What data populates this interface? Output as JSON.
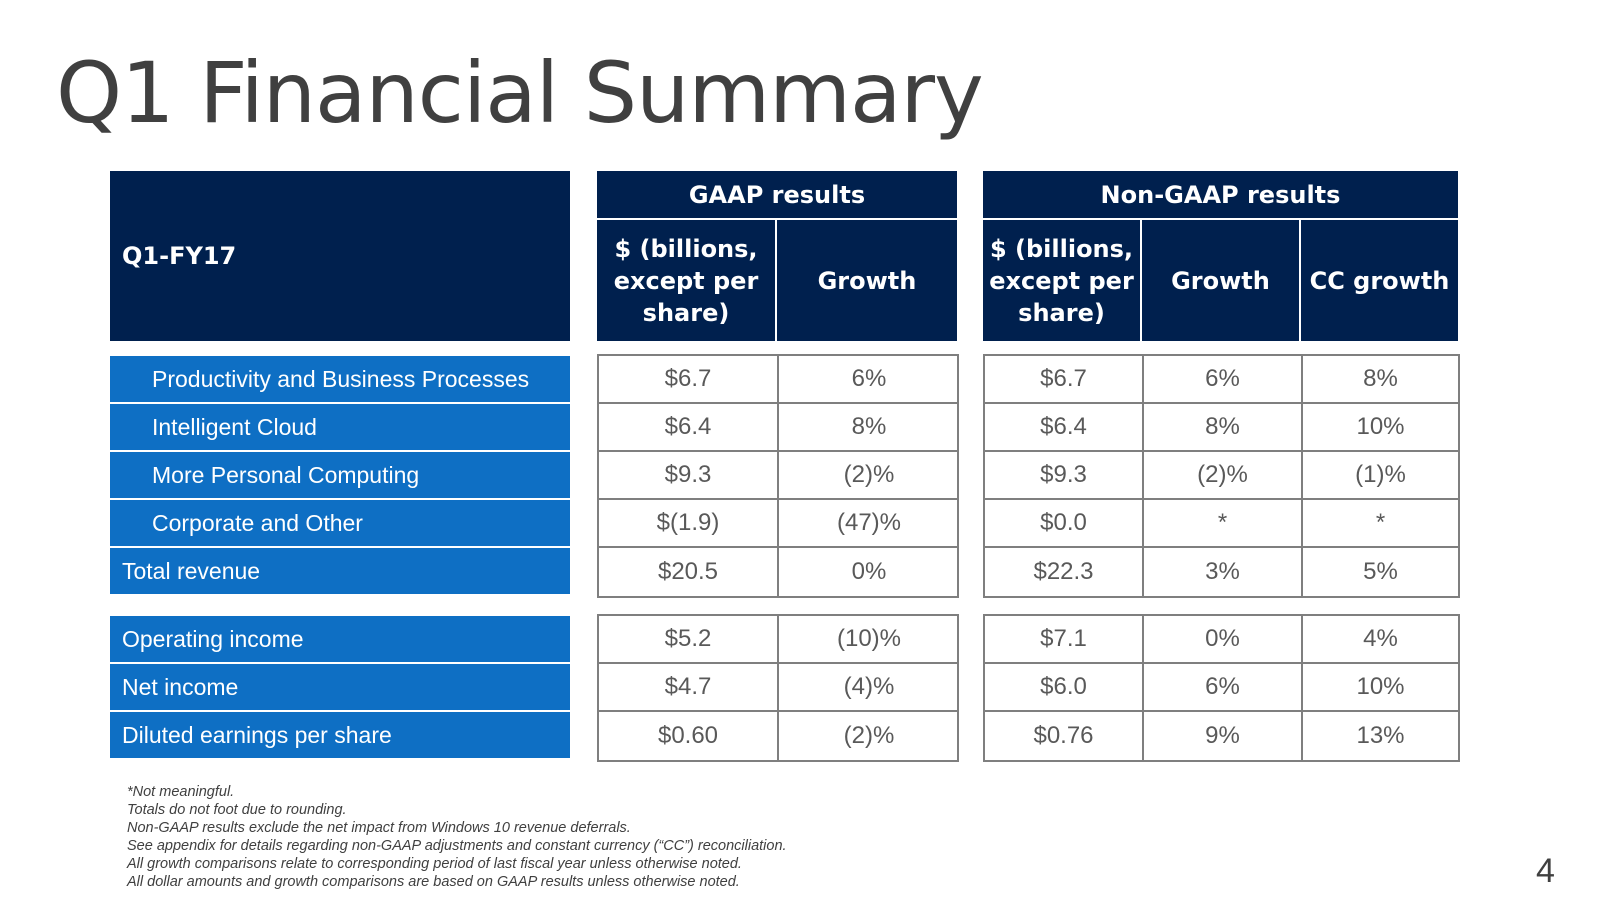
{
  "title": "Q1 Financial Summary",
  "header": {
    "period": "Q1-FY17",
    "gaap_group": "GAAP results",
    "nongaap_group": "Non-GAAP results",
    "col_dollars": "$ (billions, except per share)",
    "col_growth": "Growth",
    "col_cc_growth": "CC growth"
  },
  "revenue_rows": [
    {
      "label": "Productivity and Business Processes",
      "gaap_value": "$6.7",
      "gaap_growth": "6%",
      "ng_value": "$6.7",
      "ng_growth": "6%",
      "ng_cc": "8%"
    },
    {
      "label": "Intelligent Cloud",
      "gaap_value": "$6.4",
      "gaap_growth": "8%",
      "ng_value": "$6.4",
      "ng_growth": "8%",
      "ng_cc": "10%"
    },
    {
      "label": "More Personal Computing",
      "gaap_value": "$9.3",
      "gaap_growth": "(2)%",
      "ng_value": "$9.3",
      "ng_growth": "(2)%",
      "ng_cc": "(1)%"
    },
    {
      "label": "Corporate and Other",
      "gaap_value": "$(1.9)",
      "gaap_growth": "(47)%",
      "ng_value": "$0.0",
      "ng_growth": "*",
      "ng_cc": "*"
    },
    {
      "label": "Total revenue",
      "gaap_value": "$20.5",
      "gaap_growth": "0%",
      "ng_value": "$22.3",
      "ng_growth": "3%",
      "ng_cc": "5%"
    }
  ],
  "income_rows": [
    {
      "label": "Operating income",
      "gaap_value": "$5.2",
      "gaap_growth": "(10)%",
      "ng_value": "$7.1",
      "ng_growth": "0%",
      "ng_cc": "4%"
    },
    {
      "label": "Net income",
      "gaap_value": "$4.7",
      "gaap_growth": "(4)%",
      "ng_value": "$6.0",
      "ng_growth": "6%",
      "ng_cc": "10%"
    },
    {
      "label": "Diluted earnings per share",
      "gaap_value": "$0.60",
      "gaap_growth": "(2)%",
      "ng_value": "$0.76",
      "ng_growth": "9%",
      "ng_cc": "13%"
    }
  ],
  "footnotes": [
    "*Not meaningful.",
    "Totals do not foot due to rounding.",
    "Non-GAAP results exclude the net impact from Windows 10 revenue deferrals.",
    "See appendix for details regarding non-GAAP adjustments and constant currency (“CC”) reconciliation.",
    "All growth comparisons relate to corresponding period of last fiscal year unless otherwise noted.",
    "All dollar amounts and growth comparisons are based on GAAP results unless otherwise noted."
  ],
  "page_number": "4",
  "colors": {
    "navy": "#00204e",
    "blue": "#0e6fc4",
    "grid": "#7f7f7f"
  }
}
